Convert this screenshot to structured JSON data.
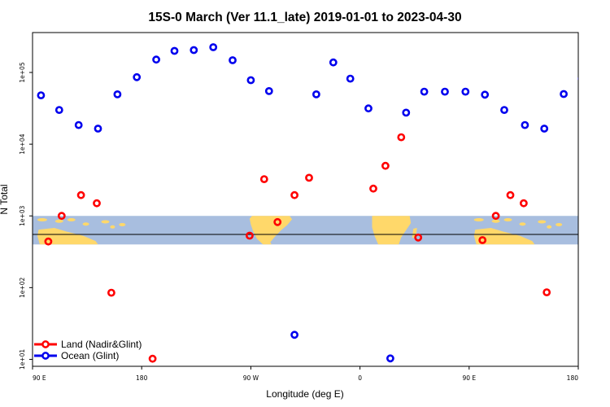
{
  "chart_data": {
    "type": "scatter",
    "title": "15S-0 March (Ver 11.1_late)   2019-01-01 to 2023-04-30",
    "xlabel": "Longitude (deg E)",
    "ylabel": "N Total",
    "x_ticks": [
      {
        "value": 90,
        "label": "90 E"
      },
      {
        "value": 180,
        "label": "180"
      },
      {
        "value": 270,
        "label": "90 W"
      },
      {
        "value": 360,
        "label": "0"
      },
      {
        "value": 450,
        "label": "90 E"
      },
      {
        "value": 540,
        "label": "180"
      }
    ],
    "xlim": [
      90,
      540
    ],
    "y_scale": "log",
    "ylim": [
      8,
      360000
    ],
    "y_ticks": [
      {
        "value": 10,
        "label": "1e+01"
      },
      {
        "value": 100,
        "label": "1e+02"
      },
      {
        "value": 1000,
        "label": "1e+03"
      },
      {
        "value": 10000,
        "label": "1e+04"
      },
      {
        "value": 100000,
        "label": "1e+05"
      }
    ],
    "map_strip": {
      "y_range": [
        400,
        1000
      ],
      "ocean_color": "#a8bedf",
      "land_color": "#ffd86a"
    },
    "legend": {
      "position": "bottom-left"
    },
    "series": [
      {
        "name": "Land (Nadir&Glint)",
        "color": "#ff0000",
        "points": [
          {
            "x": 103,
            "y": 440
          },
          {
            "x": 114,
            "y": 1000
          },
          {
            "x": 130,
            "y": 1950
          },
          {
            "x": 143,
            "y": 1500
          },
          {
            "x": 155,
            "y": 85
          },
          {
            "x": 189,
            "y": 10.2
          },
          {
            "x": 269,
            "y": 530
          },
          {
            "x": 281,
            "y": 3250
          },
          {
            "x": 292,
            "y": 820
          },
          {
            "x": 306,
            "y": 1950
          },
          {
            "x": 318,
            "y": 3400
          },
          {
            "x": 371,
            "y": 2400
          },
          {
            "x": 381,
            "y": 5000
          },
          {
            "x": 394,
            "y": 12500
          },
          {
            "x": 408,
            "y": 500
          },
          {
            "x": 461,
            "y": 460
          },
          {
            "x": 472,
            "y": 1000
          },
          {
            "x": 484,
            "y": 1950
          },
          {
            "x": 495,
            "y": 1500
          },
          {
            "x": 514,
            "y": 86
          }
        ]
      },
      {
        "name": "Ocean (Glint)",
        "color": "#0000ee",
        "points": [
          {
            "x": 97,
            "y": 48000
          },
          {
            "x": 112,
            "y": 30000
          },
          {
            "x": 128,
            "y": 18500
          },
          {
            "x": 144,
            "y": 16500
          },
          {
            "x": 160,
            "y": 49500
          },
          {
            "x": 176,
            "y": 86000
          },
          {
            "x": 192,
            "y": 151000
          },
          {
            "x": 207,
            "y": 200000
          },
          {
            "x": 223,
            "y": 205000
          },
          {
            "x": 239,
            "y": 225000
          },
          {
            "x": 255,
            "y": 148000
          },
          {
            "x": 270,
            "y": 78000
          },
          {
            "x": 285,
            "y": 55000
          },
          {
            "x": 306,
            "y": 22
          },
          {
            "x": 324,
            "y": 49500
          },
          {
            "x": 338,
            "y": 138000
          },
          {
            "x": 352,
            "y": 82000
          },
          {
            "x": 367,
            "y": 31500
          },
          {
            "x": 385,
            "y": 10.3
          },
          {
            "x": 398,
            "y": 27500
          },
          {
            "x": 413,
            "y": 54000
          },
          {
            "x": 430,
            "y": 54000
          },
          {
            "x": 447,
            "y": 54000
          },
          {
            "x": 463,
            "y": 49000
          },
          {
            "x": 479,
            "y": 30000
          },
          {
            "x": 496,
            "y": 18500
          },
          {
            "x": 512,
            "y": 16500
          },
          {
            "x": 528,
            "y": 50000
          },
          {
            "x": 543,
            "y": 82000
          }
        ]
      }
    ]
  }
}
